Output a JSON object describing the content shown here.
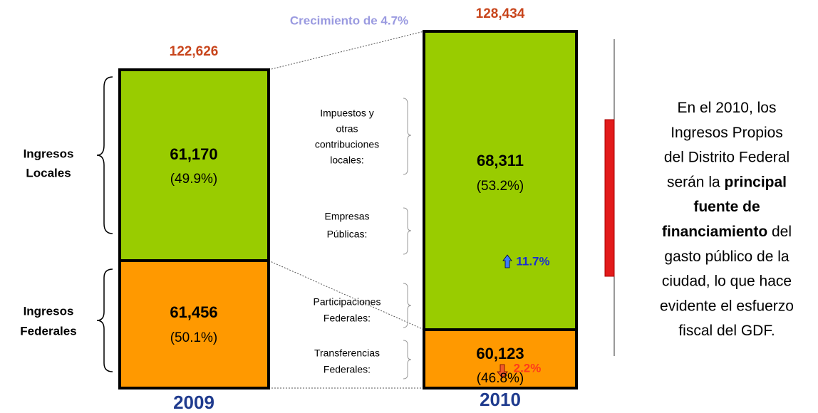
{
  "growth": "Crecimiento de 4.7%",
  "years": [
    {
      "year": "2009",
      "total": "122,626",
      "segments": [
        {
          "value": "61,170",
          "share": "(49.9%)"
        },
        {
          "value": "61,456",
          "share": "(50.1%)"
        }
      ]
    },
    {
      "year": "2010",
      "total": "128,434",
      "segments": [
        {
          "value": "68,311",
          "share": "(53.2%)",
          "change": "11.7%"
        },
        {
          "value": "60,123",
          "share": "(46.8%)",
          "change": "2.2%"
        }
      ]
    }
  ],
  "groups": [
    [
      "Ingresos",
      "Locales"
    ],
    [
      "Ingresos",
      "Federales"
    ]
  ],
  "sources": [
    [
      "Impuestos y",
      "otras",
      "contribuciones",
      "locales:"
    ],
    [
      "Empresas",
      "Públicas:"
    ],
    [
      "Participaciones",
      "Federales:"
    ],
    [
      "Transferencias",
      "Federales:"
    ]
  ],
  "note": [
    [
      {
        "text": "En el 2010, los",
        "bold": false
      }
    ],
    [
      {
        "text": "Ingresos Propios",
        "bold": false
      }
    ],
    [
      {
        "text": "del Distrito Federal",
        "bold": false
      }
    ],
    [
      {
        "text": "serán la ",
        "bold": false
      },
      {
        "text": "principal",
        "bold": true
      }
    ],
    [
      {
        "text": "fuente de",
        "bold": true
      }
    ],
    [
      {
        "text": "financiamiento",
        "bold": true
      },
      {
        "text": " del",
        "bold": false
      }
    ],
    [
      {
        "text": "gasto público de la",
        "bold": false
      }
    ],
    [
      {
        "text": "ciudad, lo que hace",
        "bold": false
      }
    ],
    [
      {
        "text": "evidente el esfuerzo",
        "bold": false
      }
    ],
    [
      {
        "text": "fiscal del GDF.",
        "bold": false
      }
    ]
  ]
}
